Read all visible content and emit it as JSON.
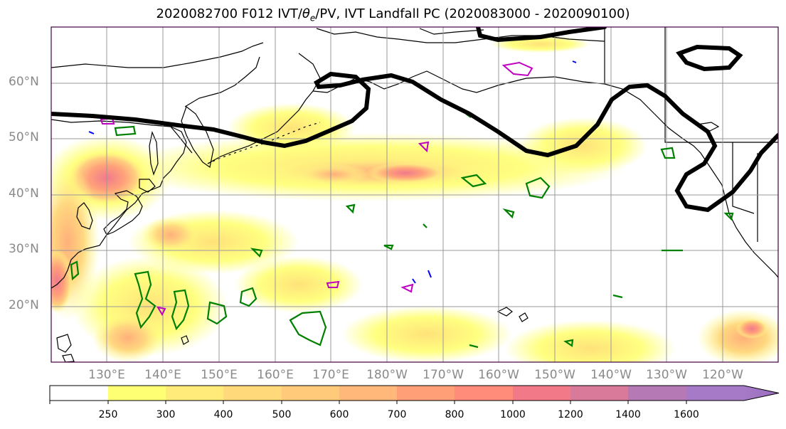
{
  "title": "2020082700 F012 IVT/θe/PV, IVT Landfall PC (2020083000 - 2020090100)",
  "title_parts": {
    "prefix": "2020082700 F012 IVT/",
    "theta": "θ",
    "sub": "e",
    "suffix": "/PV, IVT Landfall PC (2020083000 - 2020090100)"
  },
  "lat_labels": [
    "60°N",
    "50°N",
    "40°N",
    "30°N",
    "20°N"
  ],
  "lon_labels": [
    "130°E",
    "140°E",
    "150°E",
    "160°E",
    "170°E",
    "180°W",
    "170°W",
    "160°W",
    "150°W",
    "140°W",
    "130°W",
    "120°W"
  ],
  "colorbar": {
    "ticks": [
      "250",
      "300",
      "400",
      "500",
      "600",
      "700",
      "800",
      "1000",
      "1200",
      "1400",
      "1600"
    ],
    "colors": [
      "#ffffff",
      "#ffff73",
      "#ffeb7a",
      "#ffd97a",
      "#ffca7a",
      "#ffb77a",
      "#ff9f78",
      "#ff8b7a",
      "#f27a88",
      "#d97a9a",
      "#b57ab5",
      "#a67ac6"
    ]
  },
  "colors": {
    "psi_contour": "#000000",
    "theta_contour": "#008000",
    "pv_contour_magenta": "#c000c0",
    "pv_contour_blue": "#0000ff",
    "grid": "#999999",
    "frame": "#400040"
  }
}
